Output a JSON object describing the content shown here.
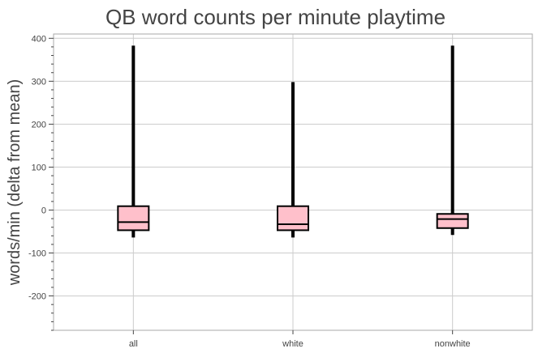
{
  "chart_data": {
    "type": "box",
    "title": "QB word counts per minute playtime",
    "xlabel": "",
    "ylabel": "words/min (delta from mean)",
    "categories": [
      "all",
      "white",
      "nonwhite"
    ],
    "boxes": [
      {
        "category": "all",
        "whisker_low": -64,
        "q1": -47,
        "median": -28,
        "q3": 9,
        "whisker_high": 383
      },
      {
        "category": "white",
        "whisker_low": -64,
        "q1": -47,
        "median": -33,
        "q3": 9,
        "whisker_high": 298
      },
      {
        "category": "nonwhite",
        "whisker_low": -58,
        "q1": -42,
        "median": -21,
        "q3": -9,
        "whisker_high": 383
      }
    ],
    "ylim": [
      -280,
      410
    ],
    "yticks": [
      400,
      300,
      200,
      100,
      0,
      -100,
      -200
    ],
    "grid": true,
    "legend": "none",
    "colors": {
      "box_fill": "#ffc0cb",
      "box_edge": "#000000",
      "whisker": "#000000",
      "grid": "#cccccc",
      "frame": "#aaaaaa"
    }
  }
}
